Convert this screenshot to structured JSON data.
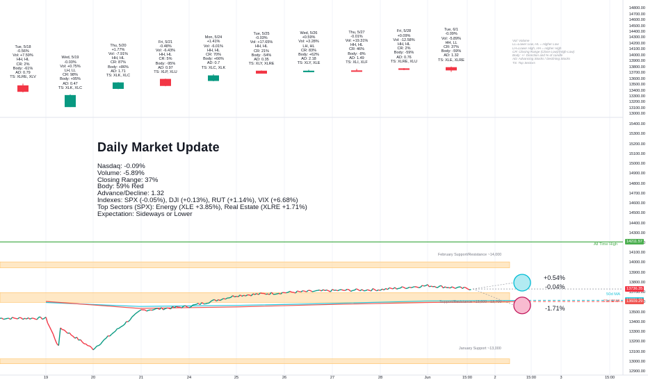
{
  "upper_annotations": [
    {
      "lines": [
        "Tue, 5/18",
        "-0.56%",
        "Vol: +7.59%",
        "HH, HL",
        "CR: 2%",
        "Body: -61%",
        "AD: 0.79",
        "TS: XLRE, XLV"
      ]
    },
    {
      "lines": [
        "Wed, 5/19",
        "-0.03%",
        "Vol: +0.75%",
        "LH, LL",
        "CR: 98%",
        "Body: +95%",
        "AD: 0.47",
        "TS: XLK, XLC"
      ]
    },
    {
      "lines": [
        "Thu, 5/20",
        "+1.77%",
        "Vol: -7.91%",
        "HH, HL",
        "CR: 87%",
        "Body: +86%",
        "AD: 1.71",
        "TS: XLK, XLC"
      ]
    },
    {
      "lines": [
        "Fri, 5/21",
        "-0.48%",
        "Vol: -6.43%",
        "HH, HL",
        "CR: 5%",
        "Body: -95%",
        "AD: 0.97",
        "TS: XLP, XLU"
      ]
    },
    {
      "lines": [
        "Mon, 5/24",
        "+1.41%",
        "Vol: -6.01%",
        "HH, HL",
        "CR: 70%",
        "Body: +66%",
        "AD: 0.7",
        "TS: XLC, XLK"
      ]
    },
    {
      "lines": [
        "Tue, 5/25",
        "-0.03%",
        "Vol: +17.65%",
        "HH, HL",
        "CR: 21%",
        "Body: -54%",
        "AD: 0.35",
        "TS: XLY, XLRE"
      ]
    },
    {
      "lines": [
        "Wed, 5/26",
        "+0.59%",
        "Vol: +3.28%",
        "LH, HL",
        "CR: 83%",
        "Body: +62%",
        "AD: 2.18",
        "TS: XLY, XLE"
      ]
    },
    {
      "lines": [
        "Thu, 5/27",
        "-0.01%",
        "Vol: +19.31%",
        "HH, HL",
        "CR: 46%",
        "Body: -8%",
        "AD: 1.49",
        "TS: XLI, XLF"
      ]
    },
    {
      "lines": [
        "Fri, 5/28",
        "+0.09%",
        "Vol: -12.58%",
        "HH, HL",
        "CR: 2%",
        "Body: -59%",
        "AD: 0.76",
        "TS: XLRE, XLU"
      ]
    },
    {
      "lines": [
        "Tue, 6/1",
        "-0.09%",
        "Vol: -5.89%",
        "HH, LL",
        "CR: 37%",
        "Body: -59%",
        "AD: 1.32",
        "TS: XLE, XLRE"
      ]
    }
  ],
  "legend": [
    "Vol: Volume",
    "LL=Lower Low, HL = Higher Low",
    "LH=Lower High, HH = Higher High",
    "CR: Closing Range (Close-Low)/(High-Low)",
    "Body: +/- Direction and % of candle",
    "AD: Advancing Stocks / Declining Stocks",
    "TS: Top Sectors"
  ],
  "update": {
    "title": "Daily Market Update",
    "lines": [
      "Nasdaq: -0.09%",
      "Volume: -5.89%",
      "Closing Range: 37%",
      "Body: 59% Red",
      "Advance/Decline: 1.32",
      "Indexes: SPX (-0.05%), DJI (+0.13%), RUT (+1.14%), VIX (+6.68%)",
      "Top Sectors (SPX): Energy (XLE +3.85%), Real Estate (XLRE +1.71%)",
      "Expectation: Sideways or Lower"
    ]
  },
  "labels": {
    "all_time_high": "All Time High",
    "feb_zone": "February Support/Resistance ~14,000",
    "mid_zone": "Support/Resistance ~13,600 - 13,700",
    "jan_zone": "January Support ~13,000",
    "ma50": "50d MA",
    "ema21": "21d EMA",
    "proj_up": "+0.54%",
    "proj_flat": "-0.04%",
    "proj_down": "-1.71%"
  },
  "colors": {
    "up": "#089981",
    "down": "#f23645",
    "ath": "#4caf50",
    "zone": "#ffe0b2",
    "ma50": "#26c6da",
    "ema21": "#ef5350",
    "cyan_circle": "#00bcd4",
    "red_circle": "#c2185b"
  },
  "chart_data": [
    {
      "type": "candlestick",
      "title": "",
      "y_axis_ticks": [
        13000,
        13100,
        13200,
        13300,
        13400,
        13500,
        13600,
        13700,
        13800,
        13900,
        14000,
        14100,
        14200,
        14300,
        14400,
        14500,
        14600,
        14700,
        14800
      ],
      "ylim": [
        12980,
        14850
      ],
      "candles": [
        {
          "date": "5/18",
          "open": 13490,
          "high": 13520,
          "low": 13370,
          "close": 13380,
          "color": "down"
        },
        {
          "date": "5/19",
          "open": 13120,
          "high": 13335,
          "low": 13120,
          "close": 13325,
          "color": "up"
        },
        {
          "date": "5/20",
          "open": 13430,
          "high": 13545,
          "low": 13425,
          "close": 13540,
          "color": "up"
        },
        {
          "date": "5/21",
          "open": 13600,
          "high": 13605,
          "low": 13475,
          "close": 13480,
          "color": "down"
        },
        {
          "date": "5/24",
          "open": 13565,
          "high": 13680,
          "low": 13560,
          "close": 13660,
          "color": "up"
        },
        {
          "date": "5/25",
          "open": 13740,
          "high": 13745,
          "low": 13690,
          "close": 13690,
          "color": "down"
        },
        {
          "date": "5/26",
          "open": 13715,
          "high": 13755,
          "low": 13715,
          "close": 13740,
          "color": "up"
        },
        {
          "date": "5/27",
          "open": 13745,
          "high": 13770,
          "low": 13730,
          "close": 13740,
          "color": "down"
        },
        {
          "date": "5/28",
          "open": 13780,
          "high": 13785,
          "low": 13750,
          "close": 13755,
          "color": "down"
        },
        {
          "date": "6/1",
          "open": 13800,
          "high": 13810,
          "low": 13720,
          "close": 13745,
          "color": "down"
        }
      ]
    },
    {
      "type": "line",
      "title": "",
      "y_axis_ticks": [
        12900,
        13000,
        13100,
        13200,
        13300,
        13400,
        13500,
        13600,
        13700,
        13800,
        13900,
        14000,
        14100,
        14200,
        14300,
        14400,
        14500,
        14600,
        14700,
        14800,
        14900,
        15000,
        15100,
        15200,
        15300,
        15400
      ],
      "x_ticks": [
        "19",
        "20",
        "21",
        "24",
        "25",
        "26",
        "27",
        "28",
        "Jun",
        "15:00",
        "2",
        "15:00",
        "3",
        "15:00"
      ],
      "ylim": [
        12880,
        15450
      ],
      "series": [
        {
          "name": "",
          "x": [
            "18",
            "19",
            "20",
            "21",
            "24",
            "25",
            "26",
            "27",
            "28",
            "Jun"
          ],
          "values": [
            13440,
            13130,
            13520,
            13560,
            13670,
            13700,
            13720,
            13730,
            13770,
            13736
          ]
        }
      ],
      "price_tags": {
        "all_time_high": 14211.57,
        "last": 13736.35,
        "high_tag": 13736.48,
        "ma50": 13621.71,
        "ema21": 13609.29
      },
      "zones": [
        {
          "label": "February Support/Resistance ~14,000",
          "low": 13950,
          "high": 14010
        },
        {
          "label": "Support/Resistance ~13,600 - 13,700",
          "low": 13600,
          "high": 13700
        },
        {
          "label": "January Support ~13,000",
          "low": 12980,
          "high": 13030
        }
      ]
    }
  ]
}
